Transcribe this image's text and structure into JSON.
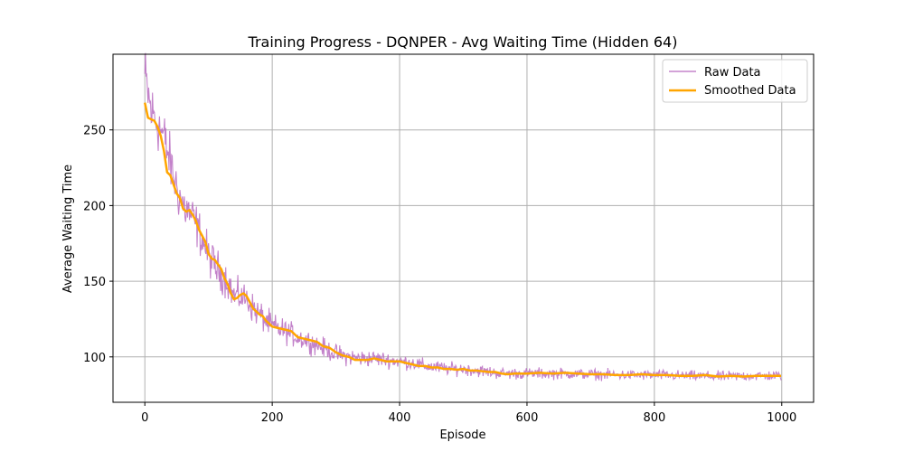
{
  "chart_data": {
    "type": "line",
    "title": "Training Progress - DQNPER - Avg Waiting Time (Hidden 64)",
    "xlabel": "Episode",
    "ylabel": "Average Waiting Time",
    "xlim": [
      -50,
      1050
    ],
    "ylim": [
      70,
      300
    ],
    "xticks": [
      0,
      200,
      400,
      600,
      800,
      1000
    ],
    "yticks": [
      100,
      150,
      200,
      250
    ],
    "grid": true,
    "legend_position": "top-right",
    "series": [
      {
        "name": "Raw Data",
        "color": "#b96cc1",
        "style": "thin noisy line",
        "anchors": [
          [
            0,
            285
          ],
          [
            10,
            262
          ],
          [
            20,
            255
          ],
          [
            30,
            245
          ],
          [
            40,
            228
          ],
          [
            50,
            212
          ],
          [
            60,
            200
          ],
          [
            70,
            195
          ],
          [
            80,
            188
          ],
          [
            90,
            178
          ],
          [
            100,
            167
          ],
          [
            110,
            160
          ],
          [
            120,
            155
          ],
          [
            130,
            150
          ],
          [
            140,
            140
          ],
          [
            150,
            140
          ],
          [
            160,
            138
          ],
          [
            170,
            132
          ],
          [
            180,
            128
          ],
          [
            190,
            124
          ],
          [
            200,
            120
          ],
          [
            220,
            117
          ],
          [
            240,
            113
          ],
          [
            260,
            110
          ],
          [
            280,
            106
          ],
          [
            300,
            102
          ],
          [
            320,
            100
          ],
          [
            340,
            99
          ],
          [
            360,
            99
          ],
          [
            380,
            98
          ],
          [
            400,
            97
          ],
          [
            420,
            96
          ],
          [
            440,
            94
          ],
          [
            460,
            93
          ],
          [
            480,
            92
          ],
          [
            500,
            92
          ],
          [
            520,
            91
          ],
          [
            540,
            90
          ],
          [
            560,
            89
          ],
          [
            580,
            89
          ],
          [
            600,
            89
          ],
          [
            650,
            89
          ],
          [
            700,
            88.5
          ],
          [
            750,
            88
          ],
          [
            800,
            88
          ],
          [
            850,
            87.5
          ],
          [
            900,
            87
          ],
          [
            950,
            87.5
          ],
          [
            999,
            87.5
          ]
        ]
      },
      {
        "name": "Smoothed Data",
        "color": "#ffa500",
        "style": "thick line",
        "values": [
          [
            0,
            268
          ],
          [
            5,
            258
          ],
          [
            10,
            257
          ],
          [
            15,
            256
          ],
          [
            20,
            252
          ],
          [
            25,
            246
          ],
          [
            30,
            236
          ],
          [
            35,
            222
          ],
          [
            40,
            220
          ],
          [
            45,
            214
          ],
          [
            50,
            208
          ],
          [
            55,
            205
          ],
          [
            60,
            198
          ],
          [
            65,
            196
          ],
          [
            70,
            197
          ],
          [
            75,
            194
          ],
          [
            80,
            190
          ],
          [
            85,
            184
          ],
          [
            90,
            180
          ],
          [
            95,
            176
          ],
          [
            100,
            168
          ],
          [
            105,
            165
          ],
          [
            110,
            164
          ],
          [
            115,
            161
          ],
          [
            120,
            158
          ],
          [
            125,
            152
          ],
          [
            130,
            148
          ],
          [
            135,
            142
          ],
          [
            140,
            138
          ],
          [
            145,
            139
          ],
          [
            150,
            141
          ],
          [
            155,
            142
          ],
          [
            160,
            140
          ],
          [
            165,
            136
          ],
          [
            170,
            132
          ],
          [
            175,
            130
          ],
          [
            180,
            128
          ],
          [
            185,
            127
          ],
          [
            190,
            124
          ],
          [
            195,
            122
          ],
          [
            200,
            120
          ],
          [
            210,
            119
          ],
          [
            220,
            118
          ],
          [
            230,
            117
          ],
          [
            240,
            113
          ],
          [
            250,
            112
          ],
          [
            260,
            111
          ],
          [
            270,
            110
          ],
          [
            280,
            107
          ],
          [
            290,
            106
          ],
          [
            300,
            103
          ],
          [
            310,
            101
          ],
          [
            320,
            100
          ],
          [
            330,
            98
          ],
          [
            340,
            98
          ],
          [
            350,
            98
          ],
          [
            360,
            99
          ],
          [
            370,
            98
          ],
          [
            380,
            97
          ],
          [
            390,
            97
          ],
          [
            400,
            97
          ],
          [
            410,
            96
          ],
          [
            420,
            95
          ],
          [
            430,
            94
          ],
          [
            440,
            94
          ],
          [
            450,
            93
          ],
          [
            460,
            93
          ],
          [
            470,
            92
          ],
          [
            480,
            92
          ],
          [
            490,
            91.5
          ],
          [
            500,
            92
          ],
          [
            510,
            91
          ],
          [
            520,
            91
          ],
          [
            530,
            90.5
          ],
          [
            540,
            90
          ],
          [
            550,
            90
          ],
          [
            560,
            89
          ],
          [
            570,
            88.5
          ],
          [
            580,
            89
          ],
          [
            590,
            89
          ],
          [
            600,
            89
          ],
          [
            620,
            89.5
          ],
          [
            640,
            89
          ],
          [
            660,
            89.5
          ],
          [
            680,
            89
          ],
          [
            700,
            88.5
          ],
          [
            720,
            88.5
          ],
          [
            740,
            88
          ],
          [
            760,
            88
          ],
          [
            780,
            88.5
          ],
          [
            800,
            88
          ],
          [
            820,
            88
          ],
          [
            840,
            87.5
          ],
          [
            860,
            87.5
          ],
          [
            880,
            88
          ],
          [
            900,
            87
          ],
          [
            920,
            87.5
          ],
          [
            940,
            87
          ],
          [
            960,
            87.5
          ],
          [
            980,
            87.5
          ],
          [
            999,
            87.5
          ]
        ]
      }
    ]
  }
}
